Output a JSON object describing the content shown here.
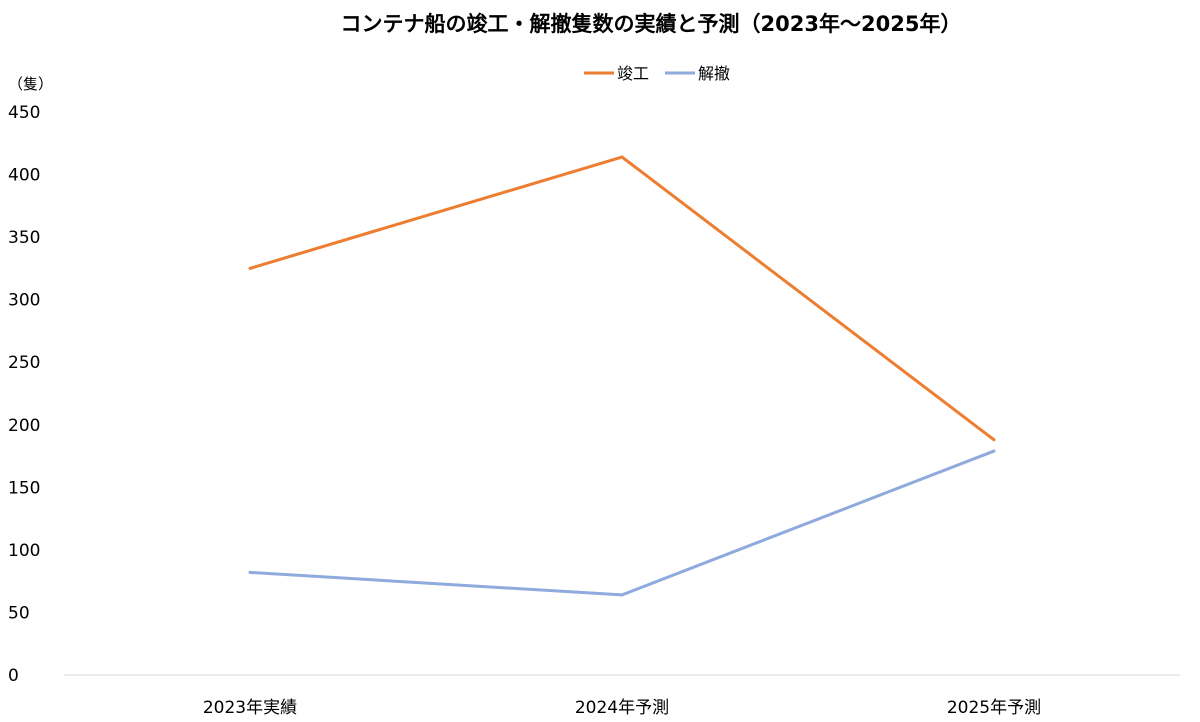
{
  "chart_data": {
    "type": "line",
    "title": "コンテナ船の竣工・解撤隻数の実績と予測（2023年～2025年）",
    "ylabel": "（隻）",
    "xlabel": "",
    "categories": [
      "2023年実績",
      "2024年予測",
      "2025年予測"
    ],
    "series": [
      {
        "name": "竣工",
        "color": "#ED7D31",
        "values": [
          325,
          414,
          188
        ]
      },
      {
        "name": "解撤",
        "color": "#8FAADC",
        "values": [
          82,
          64,
          179
        ]
      }
    ],
    "ylim": [
      0,
      450
    ],
    "yticks": [
      "0",
      "50",
      "100",
      "150",
      "200",
      "250",
      "300",
      "350",
      "400",
      "450"
    ],
    "grid": false,
    "legend_position": "top-center"
  }
}
